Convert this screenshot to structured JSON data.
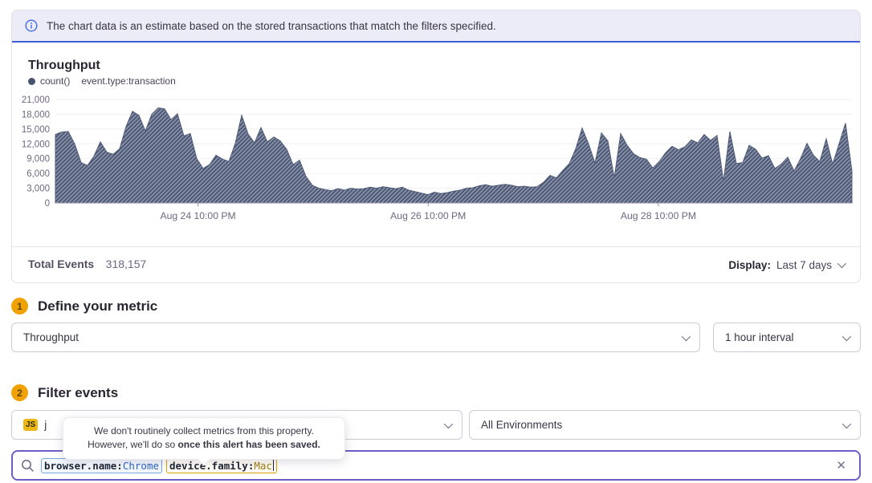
{
  "banner": {
    "text": "The chart data is an estimate based on the stored transactions that match the filters specified."
  },
  "chart": {
    "title": "Throughput",
    "legend_series": "count()",
    "legend_query": "event.type:transaction"
  },
  "chart_data": {
    "type": "area",
    "title": "Throughput",
    "ylabel": "",
    "xlabel": "",
    "ylim": [
      0,
      21000
    ],
    "grid": "horizontal",
    "legend_position": "top-left",
    "y_ticks": [
      "21,000",
      "18,000",
      "15,000",
      "12,000",
      "9,000",
      "6,000",
      "3,000",
      "0"
    ],
    "x_ticks": [
      {
        "label": "Aug 24 10:00 PM",
        "f": 0.179
      },
      {
        "label": "Aug 26 10:00 PM",
        "f": 0.468
      },
      {
        "label": "Aug 28 10:00 PM",
        "f": 0.757
      }
    ],
    "fill_color": "#4e5a77",
    "stripe_color": "#98a1b4",
    "series": [
      {
        "name": "count() event.type:transaction",
        "values": [
          13900,
          14400,
          14500,
          12000,
          8200,
          7600,
          9500,
          12400,
          10300,
          9900,
          11000,
          15500,
          18600,
          17800,
          14600,
          18000,
          19300,
          19100,
          16900,
          18100,
          13600,
          14100,
          9000,
          7000,
          7800,
          9700,
          8900,
          8400,
          12100,
          17800,
          14000,
          12200,
          15300,
          12400,
          13400,
          12600,
          10900,
          7800,
          8700,
          5400,
          3600,
          3000,
          2700,
          2500,
          2900,
          2600,
          3000,
          2800,
          2900,
          3200,
          3000,
          3300,
          3100,
          2900,
          3200,
          2600,
          2300,
          2000,
          1700,
          2200,
          1900,
          2100,
          2400,
          2600,
          3000,
          3100,
          3500,
          3700,
          3400,
          3600,
          3800,
          3600,
          3300,
          3400,
          3200,
          3300,
          4200,
          5600,
          5100,
          6600,
          8000,
          11000,
          15200,
          12000,
          8100,
          14200,
          12600,
          5100,
          14100,
          11700,
          10000,
          9200,
          8900,
          7100,
          8400,
          10200,
          11500,
          10800,
          11400,
          12800,
          12200,
          13900,
          12700,
          13700,
          4400,
          14500,
          8000,
          8200,
          11700,
          10900,
          9100,
          9600,
          7000,
          7900,
          9300,
          6500,
          9000,
          12100,
          9700,
          8400,
          13000,
          7900,
          12000,
          16200,
          6500
        ]
      }
    ]
  },
  "summary": {
    "total_events_label": "Total Events",
    "total_events_value": "318,157",
    "display_label": "Display:",
    "display_value": "Last 7 days"
  },
  "sections": {
    "metric": {
      "number": "1",
      "title": "Define your metric",
      "metric_select": "Throughput",
      "interval_select": "1 hour interval"
    },
    "filter": {
      "number": "2",
      "title": "Filter events",
      "project_badge": "JS",
      "project_visible_text": "j",
      "environment_select": "All Environments"
    }
  },
  "tooltip": {
    "line1": "We don't routinely collect metrics from this property.",
    "line2_prefix": "However, we'll do so ",
    "line2_bold": "once this alert has been saved."
  },
  "search": {
    "tokens": [
      {
        "key": "browser.name:",
        "value": "Chrome"
      },
      {
        "key": "device.family:",
        "value": "Mac"
      }
    ]
  },
  "colors": {
    "accent_purple": "#6d5fc8",
    "banner_blue": "#3f5cd3",
    "badge_amber": "#f0a202",
    "token_blue_border": "#79a7e3",
    "token_amber_border": "#d9a300",
    "chart_fill": "#4e5a77"
  }
}
